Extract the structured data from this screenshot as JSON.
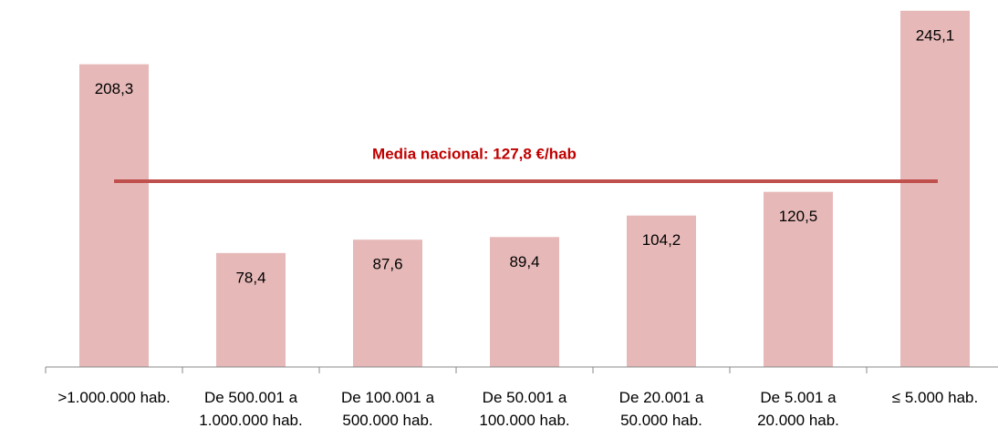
{
  "chart_data": {
    "type": "bar",
    "categories": [
      ">1.000.000 hab.",
      "De 500.001 a\n1.000.000 hab.",
      "De 100.001 a\n500.000 hab.",
      "De 50.001 a\n100.000 hab.",
      "De 20.001 a\n50.000 hab.",
      "De 5.001 a\n20.000 hab.",
      "≤ 5.000 hab."
    ],
    "values": [
      208.3,
      78.4,
      87.6,
      89.4,
      104.2,
      120.5,
      245.1
    ],
    "value_labels": [
      "208,3",
      "78,4",
      "87,6",
      "89,4",
      "104,2",
      "120,5",
      "245,1"
    ],
    "color": "#e6b9b8",
    "ylim": [
      0,
      250
    ],
    "reference_line": {
      "value": 127.8,
      "label": "Media nacional: 127,8 €/hab",
      "color": "#c0504d"
    }
  }
}
